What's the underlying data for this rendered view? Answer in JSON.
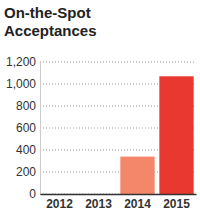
{
  "chart_data": {
    "type": "bar",
    "title": "On-the-Spot Acceptances",
    "categories": [
      "2012",
      "2013",
      "2014",
      "2015"
    ],
    "values": [
      0,
      0,
      340,
      1070
    ],
    "colors": [
      "#f4866a",
      "#f4866a",
      "#f4866a",
      "#e8382f"
    ],
    "ylim": [
      0,
      1200
    ],
    "yticks": [
      0,
      200,
      400,
      600,
      800,
      {
        "value": 1000,
        "label": "1,000"
      },
      {
        "value": 1200,
        "label": "1,200"
      }
    ],
    "grid": true
  }
}
